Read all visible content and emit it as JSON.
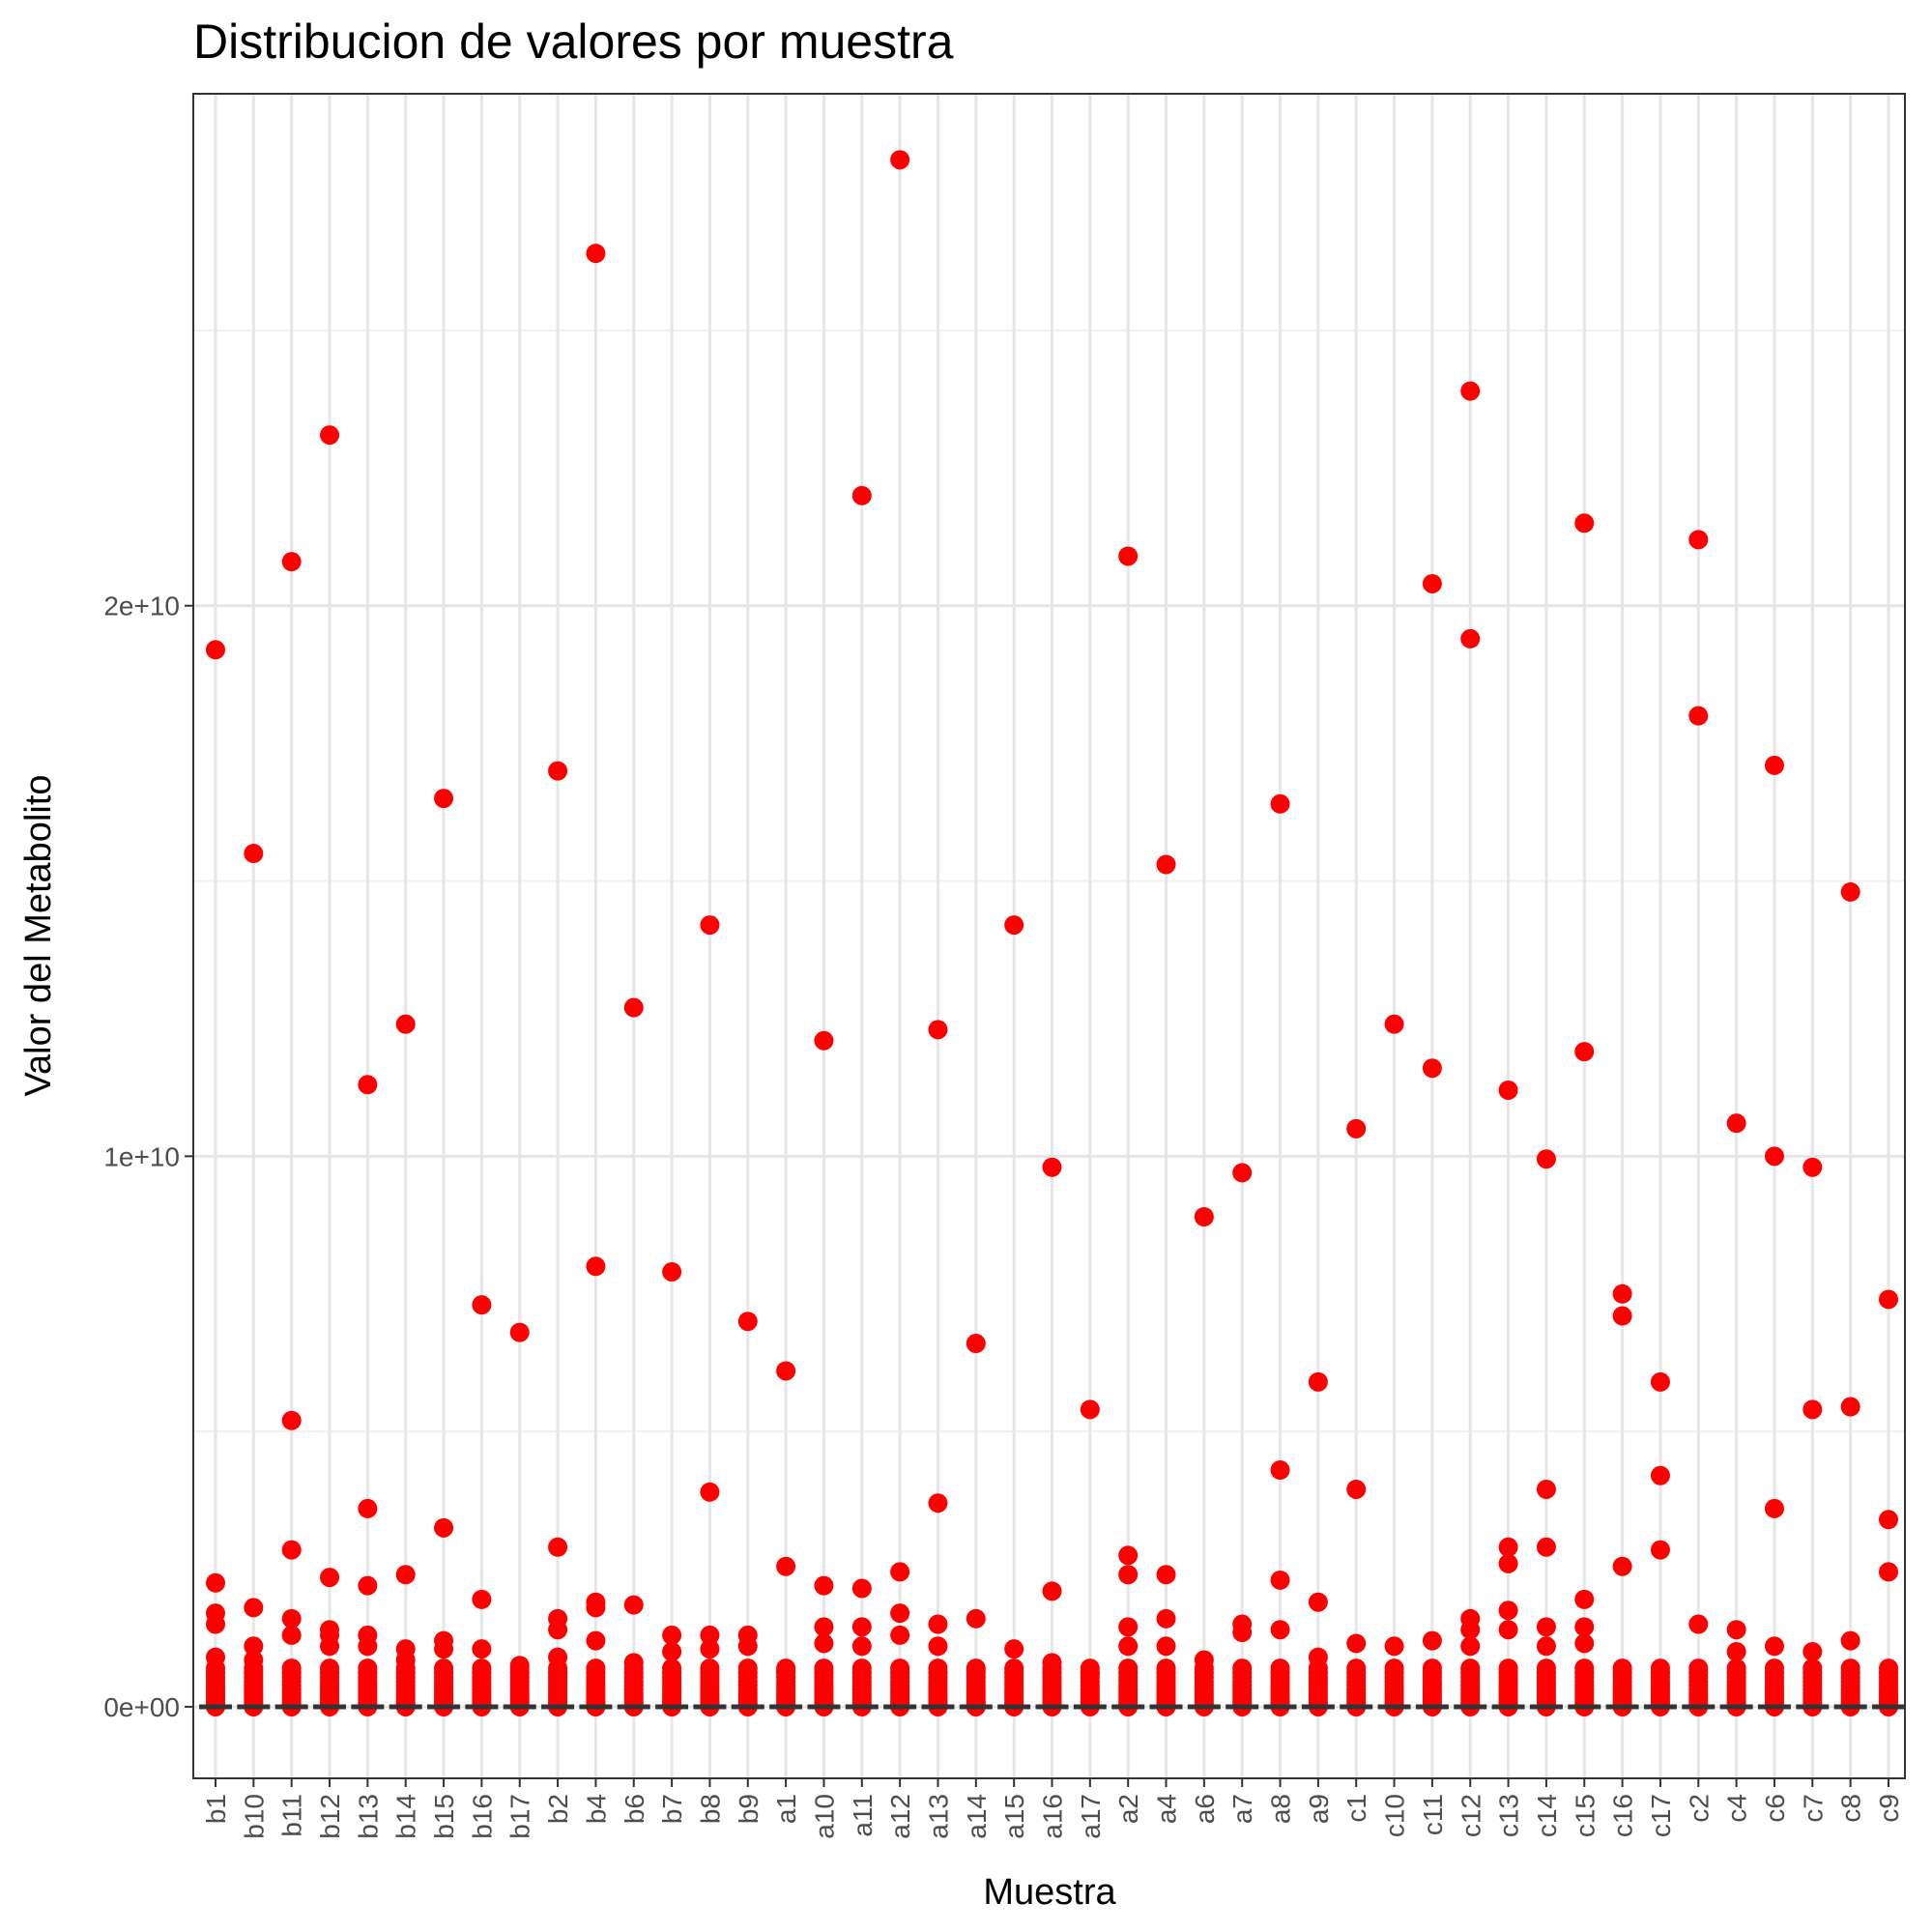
{
  "chart_data": {
    "type": "scatter",
    "title": "Distribucion de valores por muestra",
    "xlabel": "Muestra",
    "ylabel": "Valor del Metabolito",
    "ylim": [
      -1300000000,
      29300000000
    ],
    "y_ticks": [
      {
        "value": 0,
        "label": "0e+00"
      },
      {
        "value": 10000000000,
        "label": "1e+10"
      },
      {
        "value": 20000000000,
        "label": "2e+10"
      }
    ],
    "y_minor_gridlines": [
      5000000000,
      15000000000,
      25000000000
    ],
    "grid": true,
    "legend": "none",
    "point_color": "#ff0000",
    "baseline_color": "#333333",
    "categories": [
      "b1",
      "b10",
      "b11",
      "b12",
      "b13",
      "b14",
      "b15",
      "b16",
      "b17",
      "b2",
      "b4",
      "b6",
      "b7",
      "b8",
      "b9",
      "a1",
      "a10",
      "a11",
      "a12",
      "a13",
      "a14",
      "a15",
      "a16",
      "a17",
      "a2",
      "a4",
      "a6",
      "a7",
      "a8",
      "a9",
      "c1",
      "c10",
      "c11",
      "c12",
      "c13",
      "c14",
      "c15",
      "c16",
      "c17",
      "c2",
      "c4",
      "c6",
      "c7",
      "c8",
      "c9"
    ],
    "outliers": {
      "b1": [
        19200000000,
        2250000000,
        1700000000,
        1500000000,
        900000000
      ],
      "b10": [
        15500000000,
        1800000000,
        1100000000,
        850000000
      ],
      "b11": [
        20800000000,
        5200000000,
        2850000000,
        1600000000,
        1300000000
      ],
      "b12": [
        23100000000,
        2350000000,
        1400000000,
        1300000000,
        1100000000
      ],
      "b13": [
        11300000000,
        3600000000,
        2200000000,
        1300000000,
        1100000000
      ],
      "b14": [
        12400000000,
        2400000000,
        1050000000,
        850000000
      ],
      "b15": [
        16500000000,
        3250000000,
        1200000000,
        1050000000
      ],
      "b16": [
        7300000000,
        1950000000,
        1050000000
      ],
      "b17": [
        6800000000,
        750000000
      ],
      "b2": [
        17000000000,
        2900000000,
        1600000000,
        1400000000,
        900000000
      ],
      "b4": [
        26400000000,
        8000000000,
        1900000000,
        1800000000,
        1200000000
      ],
      "b6": [
        12700000000,
        1850000000,
        800000000
      ],
      "b7": [
        7900000000,
        1300000000,
        1000000000
      ],
      "b8": [
        14200000000,
        3900000000,
        1300000000,
        1050000000
      ],
      "b9": [
        7000000000,
        1300000000,
        1100000000
      ],
      "a1": [
        6100000000,
        2550000000,
        650000000
      ],
      "a10": [
        12100000000,
        2200000000,
        1450000000,
        1150000000
      ],
      "a11": [
        22000000000,
        2150000000,
        1450000000,
        1100000000
      ],
      "a12": [
        28100000000,
        2450000000,
        1700000000,
        1300000000
      ],
      "a13": [
        12300000000,
        3700000000,
        1500000000,
        1100000000
      ],
      "a14": [
        6600000000,
        1600000000,
        650000000
      ],
      "a15": [
        14200000000,
        1050000000
      ],
      "a16": [
        9800000000,
        2100000000,
        800000000
      ],
      "a17": [
        5400000000,
        600000000
      ],
      "a2": [
        20900000000,
        2750000000,
        2400000000,
        1450000000,
        1100000000
      ],
      "a4": [
        15300000000,
        2400000000,
        1600000000,
        1100000000
      ],
      "a6": [
        8900000000,
        850000000
      ],
      "a7": [
        9700000000,
        1500000000,
        1350000000
      ],
      "a8": [
        16400000000,
        4300000000,
        2300000000,
        1400000000
      ],
      "a9": [
        5900000000,
        1900000000,
        900000000
      ],
      "c1": [
        10500000000,
        3950000000,
        1150000000
      ],
      "c10": [
        12400000000,
        1100000000
      ],
      "c11": [
        20400000000,
        11600000000,
        1200000000
      ],
      "c12": [
        23900000000,
        19400000000,
        1600000000,
        1400000000,
        1100000000
      ],
      "c13": [
        11200000000,
        2900000000,
        2600000000,
        1750000000,
        1400000000
      ],
      "c14": [
        9950000000,
        3950000000,
        2900000000,
        1450000000,
        1100000000
      ],
      "c15": [
        21500000000,
        11900000000,
        1950000000,
        1450000000,
        1150000000
      ],
      "c16": [
        7500000000,
        7100000000,
        2550000000
      ],
      "c17": [
        5900000000,
        4200000000,
        2850000000
      ],
      "c2": [
        21200000000,
        18000000000,
        1500000000
      ],
      "c4": [
        10600000000,
        1400000000,
        1000000000
      ],
      "c6": [
        17100000000,
        10000000000,
        3600000000,
        1100000000
      ],
      "c7": [
        9800000000,
        5400000000,
        1000000000
      ],
      "c8": [
        14800000000,
        5450000000,
        1200000000
      ],
      "c9": [
        7400000000,
        3400000000,
        2450000000
      ]
    },
    "box_summary": {
      "median": 0,
      "q1": 0,
      "q3": 0,
      "note_shown_as": "flat black box at 0 with dense red outliers up to about 7e+08"
    }
  }
}
